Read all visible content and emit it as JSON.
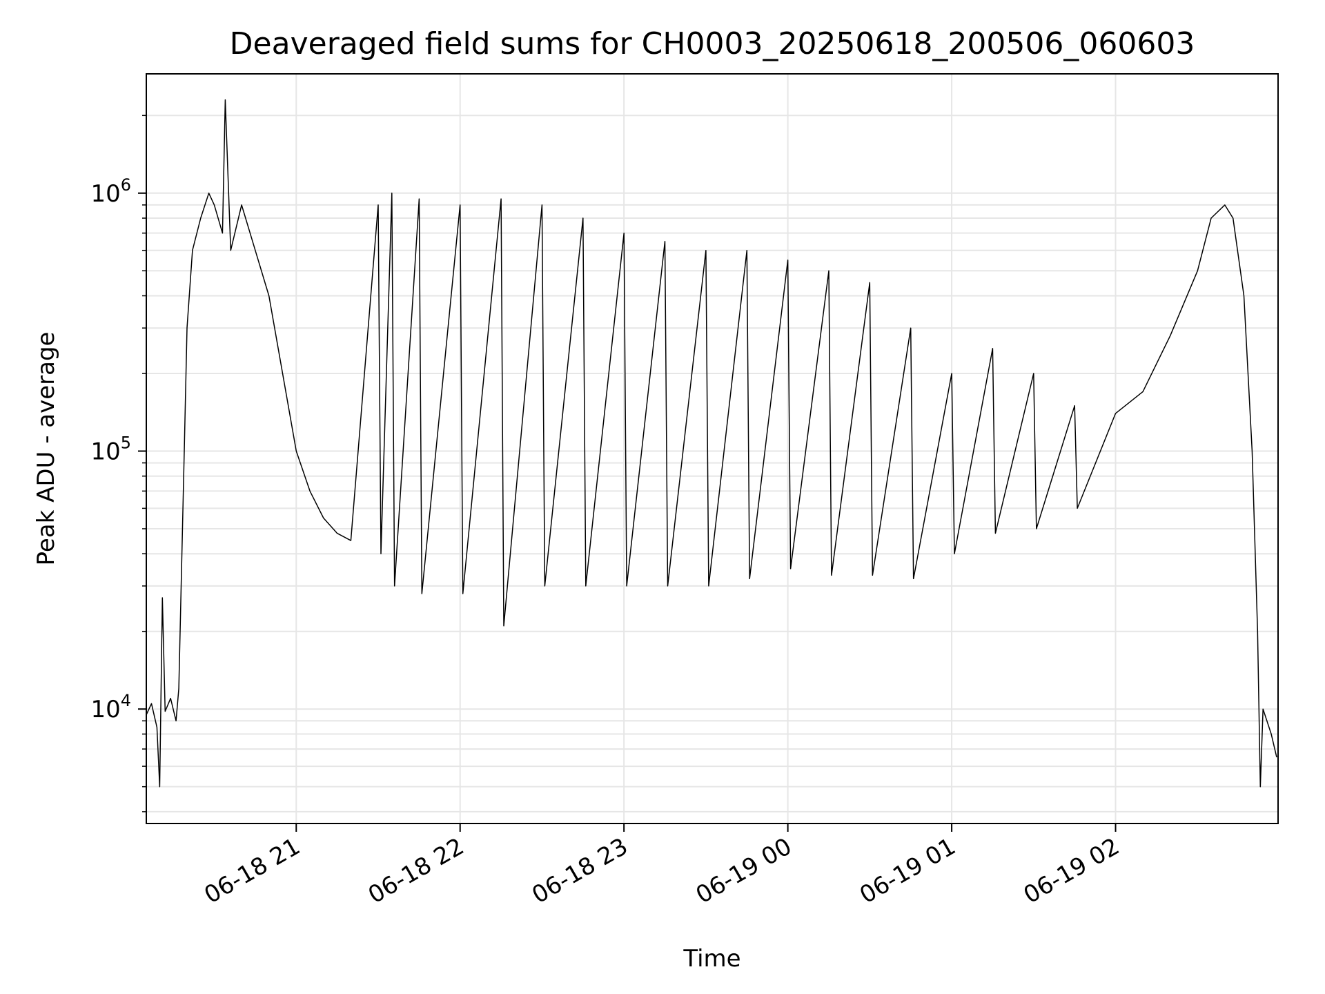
{
  "chart_data": {
    "type": "line",
    "title": "Deaveraged field sums for CH0003_20250618_200506_060603",
    "xlabel": "Time",
    "ylabel": "Peak ADU - average",
    "yscale": "log",
    "ylim": [
      3600,
      2900000
    ],
    "xlim": [
      "2025-06-18 20:05:06",
      "2025-06-19 02:59:30"
    ],
    "grid": true,
    "line_color": "#000000",
    "grid_color": "#e6e6e6",
    "x_ticks": [
      {
        "time": "2025-06-18 21:00",
        "label": "06-18 21"
      },
      {
        "time": "2025-06-18 22:00",
        "label": "06-18 22"
      },
      {
        "time": "2025-06-18 23:00",
        "label": "06-18 23"
      },
      {
        "time": "2025-06-19 00:00",
        "label": "06-19 00"
      },
      {
        "time": "2025-06-19 01:00",
        "label": "06-19 01"
      },
      {
        "time": "2025-06-19 02:00",
        "label": "06-19 02"
      }
    ],
    "y_ticks": [
      {
        "value": 10000,
        "base": "10",
        "exp": "4"
      },
      {
        "value": 100000,
        "base": "10",
        "exp": "5"
      },
      {
        "value": 1000000,
        "base": "10",
        "exp": "6"
      }
    ],
    "series": [
      {
        "points": [
          [
            "2025-06-18 20:05",
            9500
          ],
          [
            "2025-06-18 20:07",
            10500
          ],
          [
            "2025-06-18 20:09",
            8500
          ],
          [
            "2025-06-18 20:10",
            5000
          ],
          [
            "2025-06-18 20:11",
            27000
          ],
          [
            "2025-06-18 20:12",
            9800
          ],
          [
            "2025-06-18 20:14",
            11000
          ],
          [
            "2025-06-18 20:16",
            9000
          ],
          [
            "2025-06-18 20:17",
            12000
          ],
          [
            "2025-06-18 20:19",
            100000
          ],
          [
            "2025-06-18 20:20",
            300000
          ],
          [
            "2025-06-18 20:22",
            600000
          ],
          [
            "2025-06-18 20:25",
            800000
          ],
          [
            "2025-06-18 20:28",
            1000000
          ],
          [
            "2025-06-18 20:30",
            900000
          ],
          [
            "2025-06-18 20:33",
            700000
          ],
          [
            "2025-06-18 20:34",
            2300000
          ],
          [
            "2025-06-18 20:36",
            600000
          ],
          [
            "2025-06-18 20:40",
            900000
          ],
          [
            "2025-06-18 20:45",
            600000
          ],
          [
            "2025-06-18 20:50",
            400000
          ],
          [
            "2025-06-18 20:55",
            200000
          ],
          [
            "2025-06-18 21:00",
            100000
          ],
          [
            "2025-06-18 21:05",
            70000
          ],
          [
            "2025-06-18 21:10",
            55000
          ],
          [
            "2025-06-18 21:15",
            48000
          ],
          [
            "2025-06-18 21:20",
            45000
          ],
          [
            "2025-06-18 21:30",
            900000
          ],
          [
            "2025-06-18 21:31",
            40000
          ],
          [
            "2025-06-18 21:35",
            1000000
          ],
          [
            "2025-06-18 21:36",
            30000
          ],
          [
            "2025-06-18 21:45",
            950000
          ],
          [
            "2025-06-18 21:46",
            28000
          ],
          [
            "2025-06-18 22:00",
            900000
          ],
          [
            "2025-06-18 22:01",
            28000
          ],
          [
            "2025-06-18 22:15",
            950000
          ],
          [
            "2025-06-18 22:16",
            21000
          ],
          [
            "2025-06-18 22:30",
            900000
          ],
          [
            "2025-06-18 22:31",
            30000
          ],
          [
            "2025-06-18 22:45",
            800000
          ],
          [
            "2025-06-18 22:46",
            30000
          ],
          [
            "2025-06-18 23:00",
            700000
          ],
          [
            "2025-06-18 23:01",
            30000
          ],
          [
            "2025-06-18 23:15",
            650000
          ],
          [
            "2025-06-18 23:16",
            30000
          ],
          [
            "2025-06-18 23:30",
            600000
          ],
          [
            "2025-06-18 23:31",
            30000
          ],
          [
            "2025-06-18 23:45",
            600000
          ],
          [
            "2025-06-18 23:46",
            32000
          ],
          [
            "2025-06-19 00:00",
            550000
          ],
          [
            "2025-06-19 00:01",
            35000
          ],
          [
            "2025-06-19 00:15",
            500000
          ],
          [
            "2025-06-19 00:16",
            33000
          ],
          [
            "2025-06-19 00:30",
            450000
          ],
          [
            "2025-06-19 00:31",
            33000
          ],
          [
            "2025-06-19 00:45",
            300000
          ],
          [
            "2025-06-19 00:46",
            32000
          ],
          [
            "2025-06-19 01:00",
            200000
          ],
          [
            "2025-06-19 01:01",
            40000
          ],
          [
            "2025-06-19 01:15",
            250000
          ],
          [
            "2025-06-19 01:16",
            48000
          ],
          [
            "2025-06-19 01:30",
            200000
          ],
          [
            "2025-06-19 01:31",
            50000
          ],
          [
            "2025-06-19 01:45",
            150000
          ],
          [
            "2025-06-19 01:46",
            60000
          ],
          [
            "2025-06-19 02:00",
            140000
          ],
          [
            "2025-06-19 02:10",
            170000
          ],
          [
            "2025-06-19 02:20",
            280000
          ],
          [
            "2025-06-19 02:30",
            500000
          ],
          [
            "2025-06-19 02:35",
            800000
          ],
          [
            "2025-06-19 02:40",
            900000
          ],
          [
            "2025-06-19 02:43",
            800000
          ],
          [
            "2025-06-19 02:47",
            400000
          ],
          [
            "2025-06-19 02:50",
            100000
          ],
          [
            "2025-06-19 02:52",
            20000
          ],
          [
            "2025-06-19 02:53",
            5000
          ],
          [
            "2025-06-19 02:54",
            10000
          ],
          [
            "2025-06-19 02:57",
            8000
          ],
          [
            "2025-06-19 02:59",
            6500
          ]
        ]
      }
    ]
  }
}
